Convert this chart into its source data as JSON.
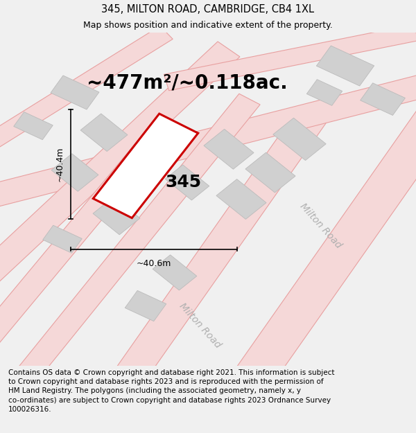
{
  "title": "345, MILTON ROAD, CAMBRIDGE, CB4 1XL",
  "subtitle": "Map shows position and indicative extent of the property.",
  "area_text": "~477m²/~0.118ac.",
  "label_345": "345",
  "dim_width": "~40.6m",
  "dim_height": "~40.4m",
  "road_label_right": "Milton Road",
  "road_label_bottom": "Milton Road",
  "footer": "Contains OS data © Crown copyright and database right 2021. This information is subject\nto Crown copyright and database rights 2023 and is reproduced with the permission of\nHM Land Registry. The polygons (including the associated geometry, namely x, y\nco-ordinates) are subject to Crown copyright and database rights 2023 Ordnance Survey\n100026316.",
  "bg_color": "#f0f0f0",
  "map_bg": "#f8f8f8",
  "title_fontsize": 10.5,
  "subtitle_fontsize": 9,
  "area_fontsize": 20,
  "label_fontsize": 18,
  "dim_fontsize": 9,
  "road_fontsize": 10,
  "footer_fontsize": 7.5,
  "road_fill": "#f5d8d8",
  "road_edge": "#e8a0a0",
  "building_fill": "#d0d0d0",
  "building_edge": "#bbbbbb",
  "plot_edge": "#cc0000",
  "plot_fill": "#ffffff"
}
